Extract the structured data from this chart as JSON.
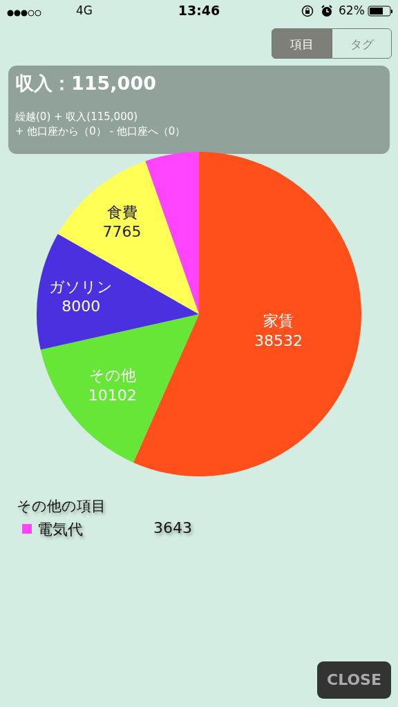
{
  "chart_data": {
    "type": "pie",
    "title": "収入：115,000",
    "subtitle": "繰越(0) + 収入(115,000)\n+ 他口座から（0） - 他口座へ（0）",
    "categories": [
      "家賃",
      "その他",
      "ガソリン",
      "食費",
      "電気代"
    ],
    "values": [
      38532,
      10102,
      8000,
      7765,
      3643
    ],
    "colors": [
      "#ff4f1a",
      "#66e636",
      "#4b30e0",
      "#ffff55",
      "#ff44ff"
    ],
    "data_labels": true,
    "annotations": [
      "4G",
      "13:46",
      "62%",
      "項目",
      "タグ",
      "その他の項目",
      "CLOSE"
    ]
  }
}
